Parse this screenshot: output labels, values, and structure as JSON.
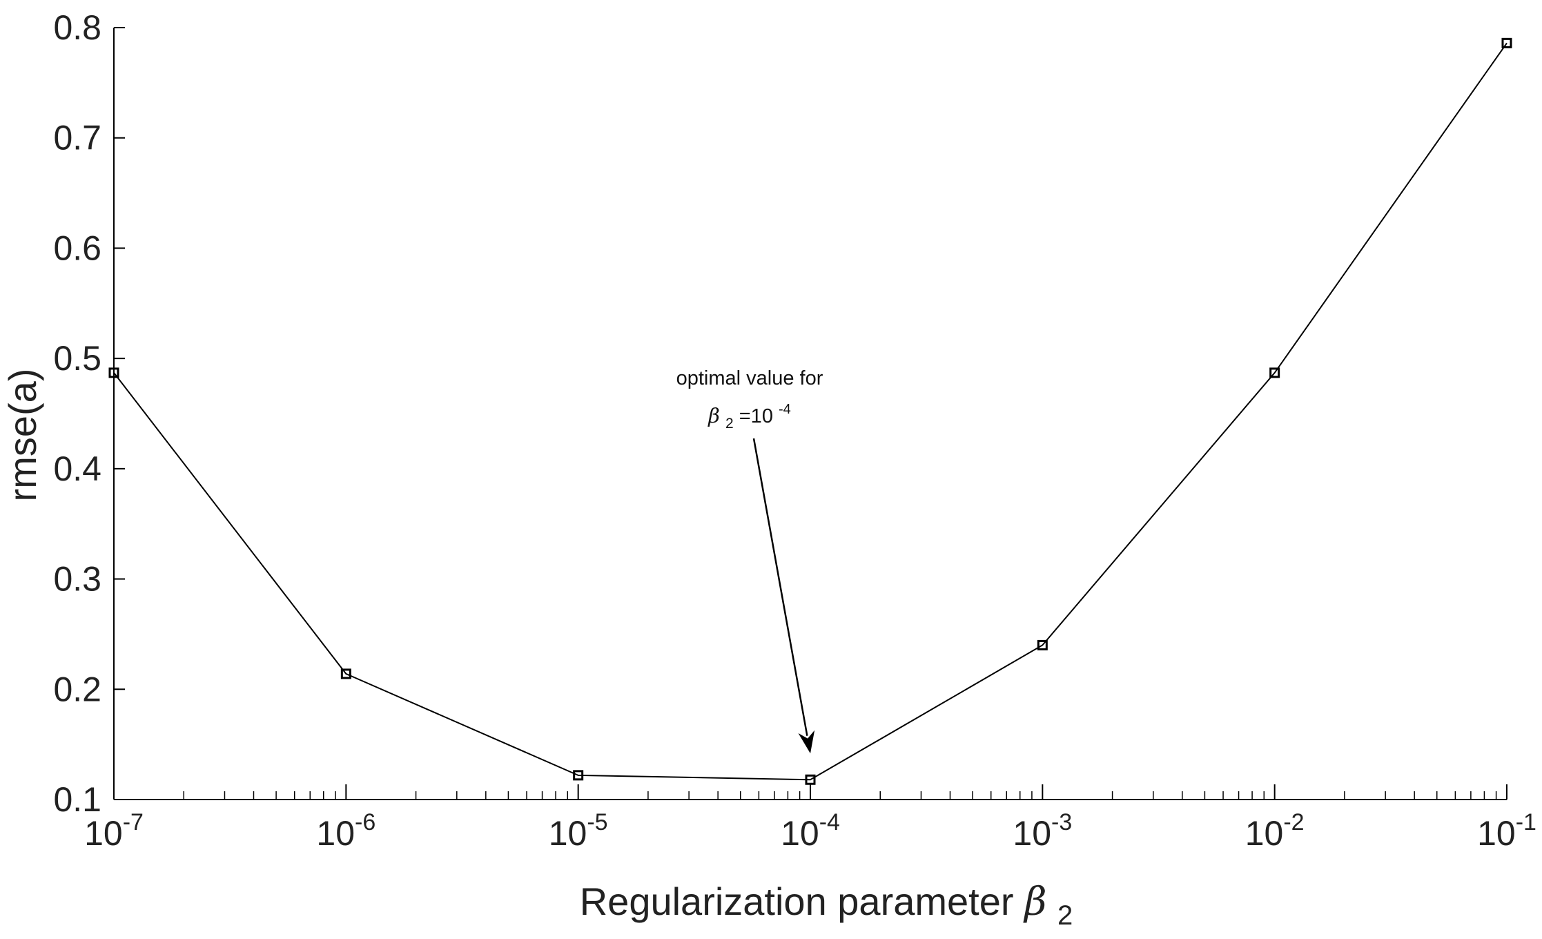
{
  "chart_data": {
    "type": "line",
    "x_scale": "log",
    "x": [
      1e-07,
      1e-06,
      1e-05,
      0.0001,
      0.001,
      0.01,
      0.1
    ],
    "y": [
      0.487,
      0.214,
      0.122,
      0.118,
      0.24,
      0.487,
      0.786
    ],
    "xlim": [
      1e-07,
      0.1
    ],
    "ylim": [
      0.1,
      0.8
    ],
    "x_ticks": [
      {
        "value": 1e-07,
        "base": "10",
        "exp": "-7"
      },
      {
        "value": 1e-06,
        "base": "10",
        "exp": "-6"
      },
      {
        "value": 1e-05,
        "base": "10",
        "exp": "-5"
      },
      {
        "value": 0.0001,
        "base": "10",
        "exp": "-4"
      },
      {
        "value": 0.001,
        "base": "10",
        "exp": "-3"
      },
      {
        "value": 0.01,
        "base": "10",
        "exp": "-2"
      },
      {
        "value": 0.1,
        "base": "10",
        "exp": "-1"
      }
    ],
    "y_ticks": [
      "0.1",
      "0.2",
      "0.3",
      "0.4",
      "0.5",
      "0.6",
      "0.7",
      "0.8"
    ],
    "xlabel": {
      "text": "Regularization parameter",
      "symbol": "β",
      "subscript": "2"
    },
    "ylabel": "rmse(a)",
    "marker": "square",
    "line_color": "#000000",
    "grid": false,
    "annotation": {
      "line1": "optimal value for",
      "symbol": "β",
      "subscript": "2",
      "equals": "=10",
      "exp": "-4",
      "target_x": 0.0001
    }
  }
}
